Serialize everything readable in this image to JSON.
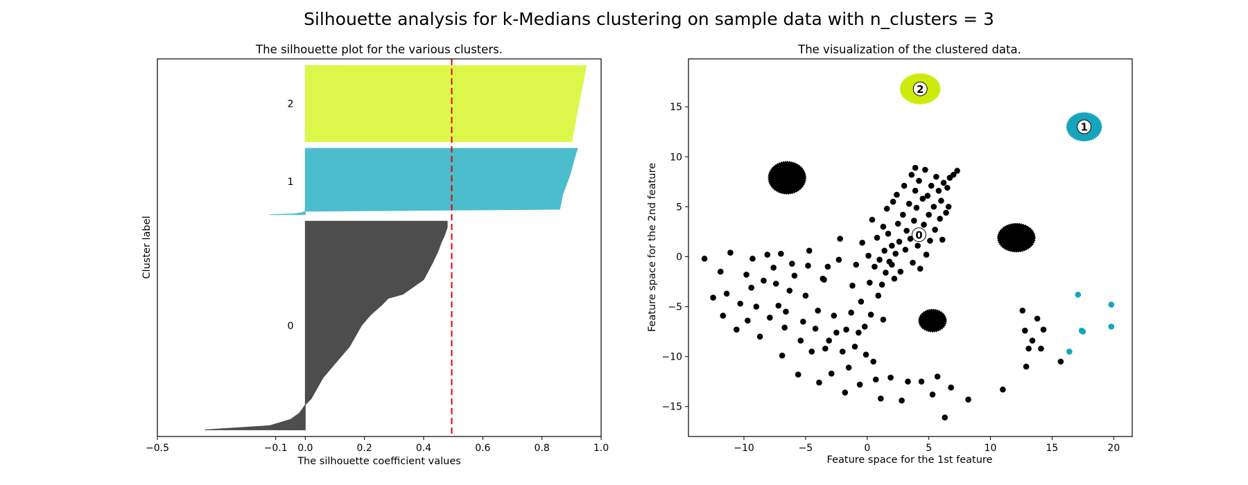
{
  "suptitle": "Silhouette analysis for k-Medians clustering on sample data with n_clusters = 3",
  "colors": {
    "cluster0": "#4d4d4d",
    "cluster1": "#4cbdcc",
    "cluster2": "#dcf74a",
    "cluster0_scatter": "#000000",
    "cluster1_scatter": "#14a5bd",
    "cluster2_scatter": "#cdeb0a",
    "avg_line": "#e00000"
  },
  "chart_data": [
    {
      "type": "area",
      "title": "The silhouette plot for the various clusters.",
      "xlabel": "The silhouette coefficient values",
      "ylabel": "Cluster label",
      "xlim": [
        -0.5,
        1.0
      ],
      "xticks": [
        -0.5,
        -0.1,
        0.0,
        0.2,
        0.4,
        0.6,
        0.8,
        1.0
      ],
      "xtick_labels": [
        "−0.5",
        "−0.1",
        "0.0",
        "0.2",
        "0.4",
        "0.6",
        "0.8",
        "1.0"
      ],
      "grid": false,
      "average_silhouette": 0.495,
      "clusters": [
        {
          "label": "0",
          "size": 315,
          "profile": [
            [
              0.0,
              -0.34
            ],
            [
              0.02,
              -0.12
            ],
            [
              0.05,
              -0.05
            ],
            [
              0.08,
              -0.02
            ],
            [
              0.1,
              -0.01
            ],
            [
              0.12,
              0.0
            ],
            [
              0.15,
              0.02
            ],
            [
              0.2,
              0.04
            ],
            [
              0.25,
              0.06
            ],
            [
              0.3,
              0.09
            ],
            [
              0.35,
              0.12
            ],
            [
              0.4,
              0.15
            ],
            [
              0.45,
              0.17
            ],
            [
              0.5,
              0.19
            ],
            [
              0.55,
              0.22
            ],
            [
              0.6,
              0.26
            ],
            [
              0.63,
              0.28
            ],
            [
              0.65,
              0.33
            ],
            [
              0.72,
              0.4
            ],
            [
              0.8,
              0.43
            ],
            [
              0.86,
              0.45
            ],
            [
              0.9,
              0.46
            ],
            [
              0.93,
              0.47
            ],
            [
              0.97,
              0.48
            ],
            [
              1.0,
              0.48
            ]
          ]
        },
        {
          "label": "1",
          "size": 100,
          "profile": [
            [
              0.0,
              -0.12
            ],
            [
              0.01,
              -0.04
            ],
            [
              0.03,
              -0.01
            ],
            [
              0.05,
              0.0
            ],
            [
              0.08,
              0.86
            ],
            [
              0.3,
              0.87
            ],
            [
              0.6,
              0.895
            ],
            [
              0.85,
              0.91
            ],
            [
              1.0,
              0.92
            ]
          ]
        },
        {
          "label": "2",
          "size": 115,
          "profile": [
            [
              0.0,
              0.9
            ],
            [
              0.2,
              0.91
            ],
            [
              0.5,
              0.925
            ],
            [
              0.8,
              0.94
            ],
            [
              1.0,
              0.95
            ]
          ]
        }
      ]
    },
    {
      "type": "scatter",
      "title": "The visualization of the clustered data.",
      "xlabel": "Feature space for the 1st feature",
      "ylabel": "Feature space for the 2nd feature",
      "xlim": [
        -14.5,
        21.5
      ],
      "ylim": [
        -18,
        19.8
      ],
      "xticks": [
        -10,
        -5,
        0,
        5,
        10,
        15,
        20
      ],
      "xtick_labels": [
        "−10",
        "−5",
        "0",
        "5",
        "10",
        "15",
        "20"
      ],
      "yticks": [
        -15,
        -10,
        -5,
        0,
        5,
        10,
        15
      ],
      "ytick_labels": [
        "−15",
        "−10",
        "−5",
        "0",
        "5",
        "10",
        "15"
      ],
      "grid": false,
      "dense_blobs": [
        {
          "cluster": 0,
          "x": -6.5,
          "y": 7.9,
          "rx": 1.5,
          "ry": 1.6
        },
        {
          "cluster": 0,
          "x": 12.1,
          "y": 1.9,
          "rx": 1.5,
          "ry": 1.4
        },
        {
          "cluster": 0,
          "x": 5.3,
          "y": -6.4,
          "rx": 1.1,
          "ry": 1.1
        },
        {
          "cluster": 2,
          "x": 4.3,
          "y": 16.8,
          "rx": 1.6,
          "ry": 1.5
        },
        {
          "cluster": 1,
          "x": 17.6,
          "y": 13.0,
          "rx": 1.4,
          "ry": 1.4
        }
      ],
      "points": {
        "cluster0": [
          [
            -13.2,
            -0.2
          ],
          [
            -12.5,
            -4.1
          ],
          [
            -11.9,
            -1.5
          ],
          [
            -11.7,
            -5.9
          ],
          [
            -11.1,
            0.4
          ],
          [
            -11.4,
            -3.7
          ],
          [
            -10.6,
            -7.3
          ],
          [
            -10.3,
            -4.7
          ],
          [
            -9.7,
            -6.4
          ],
          [
            -9.8,
            -1.8
          ],
          [
            -9.3,
            -0.2
          ],
          [
            -9.4,
            -3.1
          ],
          [
            -9.0,
            -5.0
          ],
          [
            -8.7,
            -8.0
          ],
          [
            -8.4,
            -2.4
          ],
          [
            -8.1,
            0.2
          ],
          [
            -7.9,
            -6.1
          ],
          [
            -7.6,
            -1.1
          ],
          [
            -7.4,
            -2.7
          ],
          [
            -7.2,
            -4.9
          ],
          [
            -6.9,
            -9.9
          ],
          [
            -6.7,
            -7.1
          ],
          [
            -6.6,
            -5.5
          ],
          [
            -6.3,
            -3.4
          ],
          [
            -6.1,
            -0.7
          ],
          [
            -5.9,
            -1.9
          ],
          [
            -5.6,
            -11.8
          ],
          [
            -5.4,
            -8.4
          ],
          [
            -5.2,
            -6.5
          ],
          [
            -5.0,
            -3.9
          ],
          [
            -4.8,
            -0.9
          ],
          [
            -4.7,
            0.6
          ],
          [
            -4.5,
            -9.5
          ],
          [
            -4.2,
            -7.2
          ],
          [
            -4.0,
            -5.4
          ],
          [
            -3.9,
            -12.6
          ],
          [
            -3.6,
            -2.2
          ],
          [
            -3.4,
            -9.2
          ],
          [
            -3.2,
            -1.0
          ],
          [
            -3.1,
            -8.4
          ],
          [
            -2.9,
            -11.7
          ],
          [
            -2.7,
            -5.9
          ],
          [
            -2.5,
            -7.6
          ],
          [
            -2.3,
            -0.3
          ],
          [
            -2.2,
            1.8
          ],
          [
            -2.0,
            -9.5
          ],
          [
            -1.8,
            -13.6
          ],
          [
            -1.7,
            -7.3
          ],
          [
            -1.5,
            -11.1
          ],
          [
            -1.3,
            -5.6
          ],
          [
            -1.2,
            -2.9
          ],
          [
            -1.0,
            -9.0
          ],
          [
            -0.9,
            -0.8
          ],
          [
            -0.7,
            -7.6
          ],
          [
            -0.6,
            -12.8
          ],
          [
            -0.5,
            -4.5
          ],
          [
            -0.4,
            1.4
          ],
          [
            -0.2,
            -7.0
          ],
          [
            -0.1,
            -9.8
          ],
          [
            0.1,
            0.1
          ],
          [
            0.2,
            -2.6
          ],
          [
            0.3,
            -5.8
          ],
          [
            0.4,
            3.7
          ],
          [
            0.5,
            -10.5
          ],
          [
            0.6,
            -1.0
          ],
          [
            0.7,
            -12.3
          ],
          [
            0.8,
            1.9
          ],
          [
            0.9,
            -3.9
          ],
          [
            1.0,
            -0.3
          ],
          [
            1.1,
            -14.2
          ],
          [
            1.2,
            -2.8
          ],
          [
            1.3,
            3.0
          ],
          [
            1.4,
            0.6
          ],
          [
            1.5,
            -1.6
          ],
          [
            1.6,
            4.8
          ],
          [
            1.7,
            2.3
          ],
          [
            1.8,
            -0.5
          ],
          [
            1.9,
            -12.1
          ],
          [
            2.0,
            1.1
          ],
          [
            2.1,
            5.5
          ],
          [
            2.2,
            -2.2
          ],
          [
            2.3,
            0.3
          ],
          [
            2.4,
            6.2
          ],
          [
            2.5,
            3.3
          ],
          [
            2.6,
            1.5
          ],
          [
            2.7,
            -1.5
          ],
          [
            2.8,
            -14.4
          ],
          [
            2.9,
            4.2
          ],
          [
            3.0,
            7.1
          ],
          [
            3.1,
            0.7
          ],
          [
            3.2,
            2.6
          ],
          [
            3.3,
            -12.5
          ],
          [
            3.4,
            5.3
          ],
          [
            3.5,
            1.8
          ],
          [
            3.6,
            8.2
          ],
          [
            3.7,
            -0.6
          ],
          [
            3.8,
            3.6
          ],
          [
            3.9,
            6.6
          ],
          [
            4.0,
            4.9
          ],
          [
            4.1,
            1.1
          ],
          [
            4.2,
            7.6
          ],
          [
            4.3,
            -1.2
          ],
          [
            4.4,
            2.2
          ],
          [
            4.5,
            5.8
          ],
          [
            4.6,
            3.2
          ],
          [
            4.7,
            8.7
          ],
          [
            4.8,
            0.2
          ],
          [
            4.9,
            6.1
          ],
          [
            5.0,
            4.2
          ],
          [
            5.1,
            1.6
          ],
          [
            5.2,
            7.1
          ],
          [
            5.3,
            -13.8
          ],
          [
            5.4,
            5.0
          ],
          [
            5.5,
            2.7
          ],
          [
            5.6,
            8.0
          ],
          [
            5.7,
            -12.0
          ],
          [
            5.8,
            6.6
          ],
          [
            5.9,
            3.8
          ],
          [
            6.0,
            5.6
          ],
          [
            6.1,
            1.7
          ],
          [
            6.2,
            7.4
          ],
          [
            6.3,
            -16.1
          ],
          [
            6.4,
            4.4
          ],
          [
            6.5,
            6.9
          ],
          [
            6.6,
            5.0
          ],
          [
            6.7,
            7.9
          ],
          [
            6.8,
            -13.1
          ],
          [
            7.0,
            8.2
          ],
          [
            7.3,
            8.6
          ],
          [
            8.2,
            -14.3
          ],
          [
            11.0,
            -13.3
          ],
          [
            12.6,
            -5.4
          ],
          [
            12.8,
            -7.4
          ],
          [
            12.9,
            -11.0
          ],
          [
            13.1,
            -9.2
          ],
          [
            13.4,
            -8.4
          ],
          [
            13.8,
            -6.2
          ],
          [
            14.1,
            -9.2
          ],
          [
            14.3,
            -7.3
          ],
          [
            15.7,
            -10.5
          ],
          [
            3.9,
            8.9
          ],
          [
            2.0,
            -0.8
          ],
          [
            4.4,
            -12.5
          ],
          [
            -7.0,
            0.3
          ],
          [
            -3.5,
            -2.3
          ],
          [
            1.3,
            -6.3
          ]
        ],
        "cluster1": [
          [
            16.4,
            -9.5
          ],
          [
            17.1,
            -3.8
          ],
          [
            17.4,
            -7.4
          ],
          [
            17.5,
            -7.5
          ],
          [
            19.8,
            -4.8
          ],
          [
            19.8,
            -7.0
          ]
        ]
      },
      "centers": [
        {
          "label": "0",
          "x": 4.2,
          "y": 2.2
        },
        {
          "label": "1",
          "x": 17.6,
          "y": 13.0
        },
        {
          "label": "2",
          "x": 4.3,
          "y": 16.8
        }
      ]
    }
  ]
}
